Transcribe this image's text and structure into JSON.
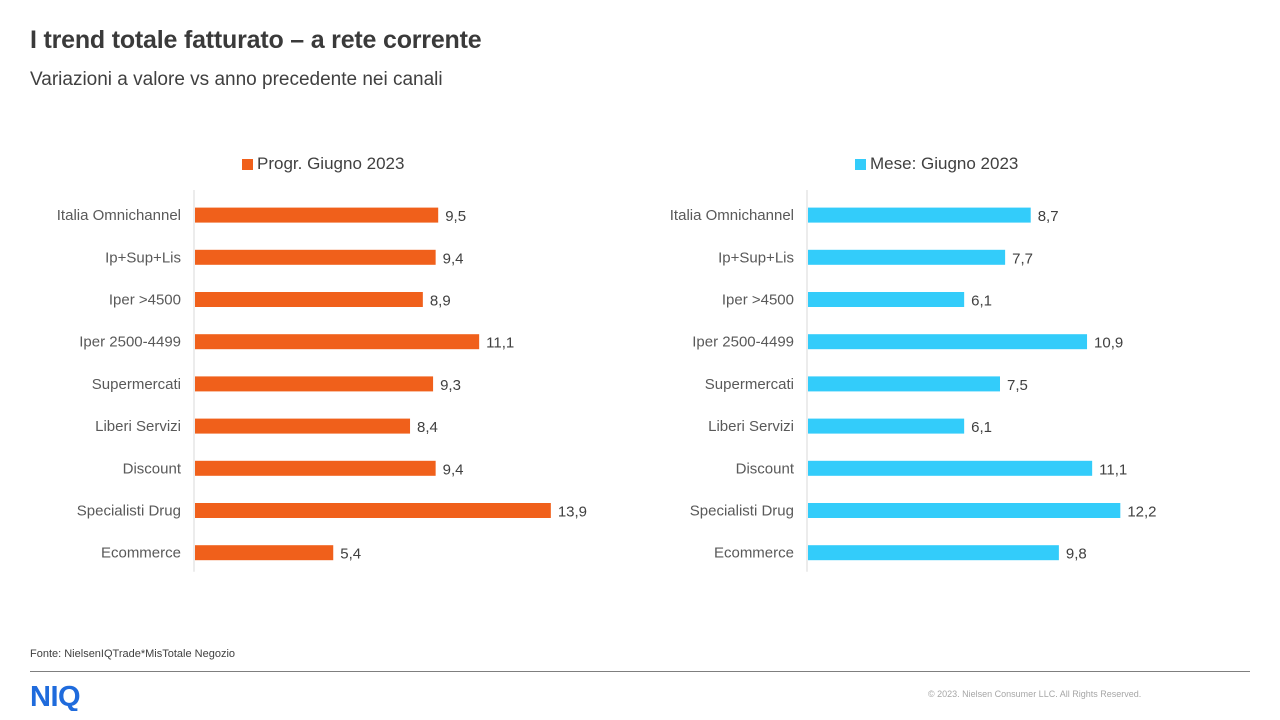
{
  "header": {
    "title": "I trend totale fatturato – a rete corrente",
    "subtitle": "Variazioni  a valore vs anno precedente nei canali"
  },
  "colors": {
    "left_series": "#f0601b",
    "right_series": "#33ccfa",
    "logo": "#1f6bdc"
  },
  "chart_data": [
    {
      "type": "bar",
      "orientation": "horizontal",
      "legend_position": "top",
      "categories": [
        "Italia Omnichannel",
        "Ip+Sup+Lis",
        "Iper >4500",
        "Iper 2500-4499",
        "Supermercati",
        "Liberi Servizi",
        "Discount",
        "Specialisti Drug",
        "Ecommerce"
      ],
      "series": [
        {
          "name": "Progr. Giugno 2023",
          "values": [
            9.5,
            9.4,
            8.9,
            11.1,
            9.3,
            8.4,
            9.4,
            13.9,
            5.4
          ],
          "labels": [
            "9,5",
            "9,4",
            "8,9",
            "11,1",
            "9,3",
            "8,4",
            "9,4",
            "13,9",
            "5,4"
          ]
        }
      ],
      "grid": false
    },
    {
      "type": "bar",
      "orientation": "horizontal",
      "legend_position": "top",
      "categories": [
        "Italia Omnichannel",
        "Ip+Sup+Lis",
        "Iper >4500",
        "Iper 2500-4499",
        "Supermercati",
        "Liberi Servizi",
        "Discount",
        "Specialisti Drug",
        "Ecommerce"
      ],
      "series": [
        {
          "name": "Mese: Giugno 2023",
          "values": [
            8.7,
            7.7,
            6.1,
            10.9,
            7.5,
            6.1,
            11.1,
            12.2,
            9.8
          ],
          "labels": [
            "8,7",
            "7,7",
            "6,1",
            "10,9",
            "7,5",
            "6,1",
            "11,1",
            "12,2",
            "9,8"
          ]
        }
      ],
      "grid": false
    }
  ],
  "footer": {
    "source": "Fonte: NielsenIQTrade*MisTotale Negozio",
    "logo_text": "NIQ",
    "copyright": "© 2023. Nielsen Consumer LLC. All Rights Reserved."
  }
}
